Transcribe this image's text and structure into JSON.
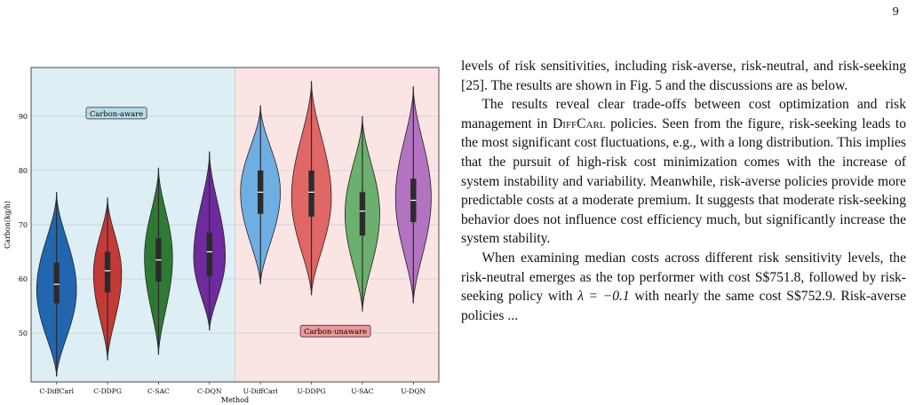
{
  "page_number": "9",
  "paragraphs": {
    "p1": "levels of risk sensitivities, including risk-averse, risk-neutral, and risk-seeking [25]. The results are shown in Fig. 5 and the discussions are as below.",
    "p2_a": "The results reveal clear trade-offs between cost optimization and risk management in ",
    "p2_name": "DiffCarl",
    "p2_b": " policies. Seen from the figure, risk-seeking leads to the most significant cost fluctuations, e.g., with a long distribution. This implies that the pursuit of high-risk cost minimization comes with the increase of system instability and variability. Meanwhile, risk-averse policies provide more predictable costs at a moderate premium. It suggests that moderate risk-seeking behavior does not influence cost efficiency much, but significantly increase the system stability.",
    "p3_a": "When examining median costs across different risk sensitivity levels, the risk-neutral emerges as the top performer with cost S$751.8, followed by risk-seeking policy with ",
    "p3_math": "λ = −0.1",
    "p3_b": " with nearly the same cost S$752.9. Risk-averse policies ..."
  },
  "chart_data": {
    "type": "violin",
    "xlabel": "Method",
    "ylabel": "Carbon(kg/h)",
    "ylim": [
      41,
      99
    ],
    "yticks": [
      50,
      60,
      70,
      80,
      90
    ],
    "grid": true,
    "regions": [
      {
        "label": "Carbon-aware",
        "color": "#ddeef5",
        "box_color": "#b8dbe8",
        "span": [
          0,
          3
        ]
      },
      {
        "label": "Carbon-unaware",
        "color": "#fbe4e4",
        "box_color": "#f09a9a",
        "span": [
          4,
          7
        ]
      }
    ],
    "categories": [
      "C-DiffCarl",
      "C-DDPG",
      "C-SAC",
      "C-DQN",
      "U-DiffCarl",
      "U-DDPG",
      "U-SAC",
      "U-DQN"
    ],
    "series": [
      {
        "color": "#2366b0",
        "min": 42,
        "max": 76,
        "q1": 55.5,
        "median": 59,
        "q3": 63,
        "mode": 58,
        "width": 0.78
      },
      {
        "color": "#c43a36",
        "min": 45,
        "max": 75,
        "q1": 57.5,
        "median": 61.5,
        "q3": 65,
        "mode": 61,
        "width": 0.55
      },
      {
        "color": "#2e7a35",
        "min": 46,
        "max": 80.5,
        "q1": 59.5,
        "median": 63.5,
        "q3": 67.5,
        "mode": 64,
        "width": 0.55
      },
      {
        "color": "#6e2a9e",
        "min": 50.5,
        "max": 83.5,
        "q1": 60.5,
        "median": 65,
        "q3": 68.5,
        "mode": 64,
        "width": 0.62
      },
      {
        "color": "#6faee3",
        "min": 59,
        "max": 92,
        "q1": 72,
        "median": 76,
        "q3": 80,
        "mode": 76,
        "width": 0.78
      },
      {
        "color": "#e06766",
        "min": 57,
        "max": 96.5,
        "q1": 71.5,
        "median": 76,
        "q3": 80,
        "mode": 75,
        "width": 0.78
      },
      {
        "color": "#6bb06e",
        "min": 54,
        "max": 90,
        "q1": 68,
        "median": 72.5,
        "q3": 76,
        "mode": 72,
        "width": 0.68
      },
      {
        "color": "#b274c0",
        "min": 55.5,
        "max": 95.5,
        "q1": 70.5,
        "median": 74.5,
        "q3": 78.5,
        "mode": 75,
        "width": 0.7
      }
    ]
  }
}
